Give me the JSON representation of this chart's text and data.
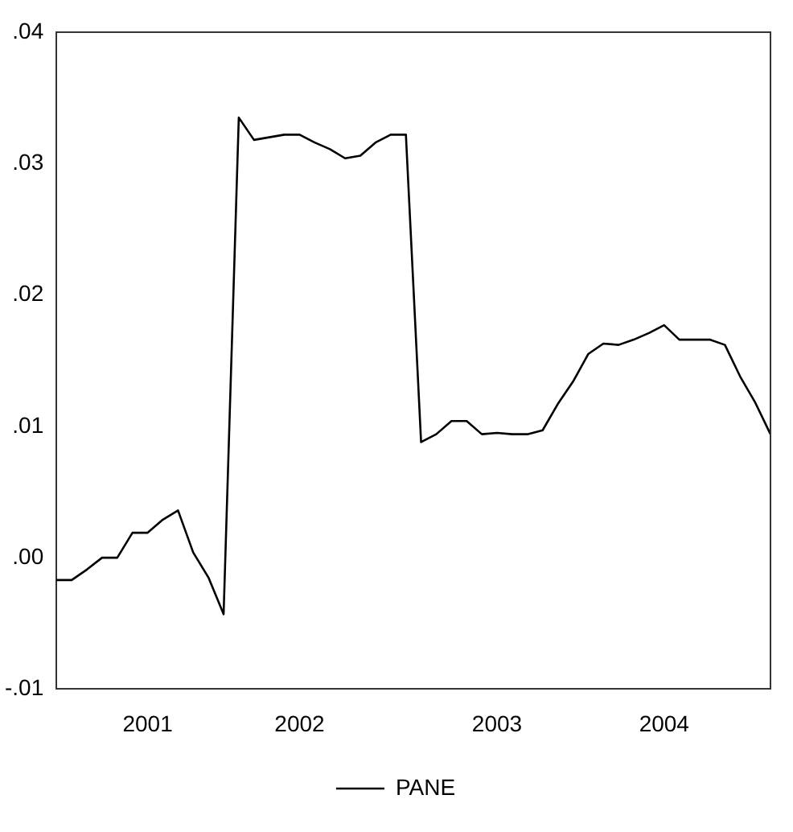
{
  "chart_data": {
    "type": "line",
    "categories": [
      null,
      null,
      null,
      null,
      null,
      null,
      "2001",
      null,
      null,
      null,
      null,
      null,
      null,
      null,
      null,
      null,
      "2002",
      null,
      null,
      null,
      null,
      null,
      null,
      null,
      null,
      null,
      null,
      null,
      null,
      "2003",
      null,
      null,
      null,
      null,
      null,
      null,
      null,
      null,
      null,
      null,
      "2004",
      null,
      null,
      null,
      null,
      null,
      null,
      null
    ],
    "series": [
      {
        "name": "PANE",
        "color": "#000000",
        "values": [
          -0.0017,
          -0.0017,
          -0.0009,
          0.0,
          0.0,
          0.0019,
          0.0019,
          0.0029,
          0.0036,
          0.0004,
          -0.0015,
          -0.0043,
          0.0335,
          0.0318,
          0.032,
          0.0322,
          0.0322,
          0.0316,
          0.0311,
          0.0304,
          0.0306,
          0.0316,
          0.0322,
          0.0322,
          0.0088,
          0.0094,
          0.0104,
          0.0104,
          0.0094,
          0.0095,
          0.0094,
          0.0094,
          0.0097,
          0.0117,
          0.0134,
          0.0155,
          0.0163,
          0.0162,
          0.0166,
          0.0171,
          0.0177,
          0.0166,
          0.0166,
          0.0166,
          0.0162,
          0.0138,
          0.0118,
          0.0094
        ]
      }
    ],
    "ylim": [
      -0.01,
      0.04
    ],
    "yticks": [
      {
        "value": -0.01,
        "label": "-.01"
      },
      {
        "value": 0,
        "label": ".00"
      },
      {
        "value": 0.01,
        "label": ".01"
      },
      {
        "value": 0.02,
        "label": ".02"
      },
      {
        "value": 0.03,
        "label": ".03"
      },
      {
        "value": 0.04,
        "label": ".04"
      }
    ],
    "grid": false,
    "legend": "bottom",
    "marker": "none",
    "line_style": "solid"
  }
}
